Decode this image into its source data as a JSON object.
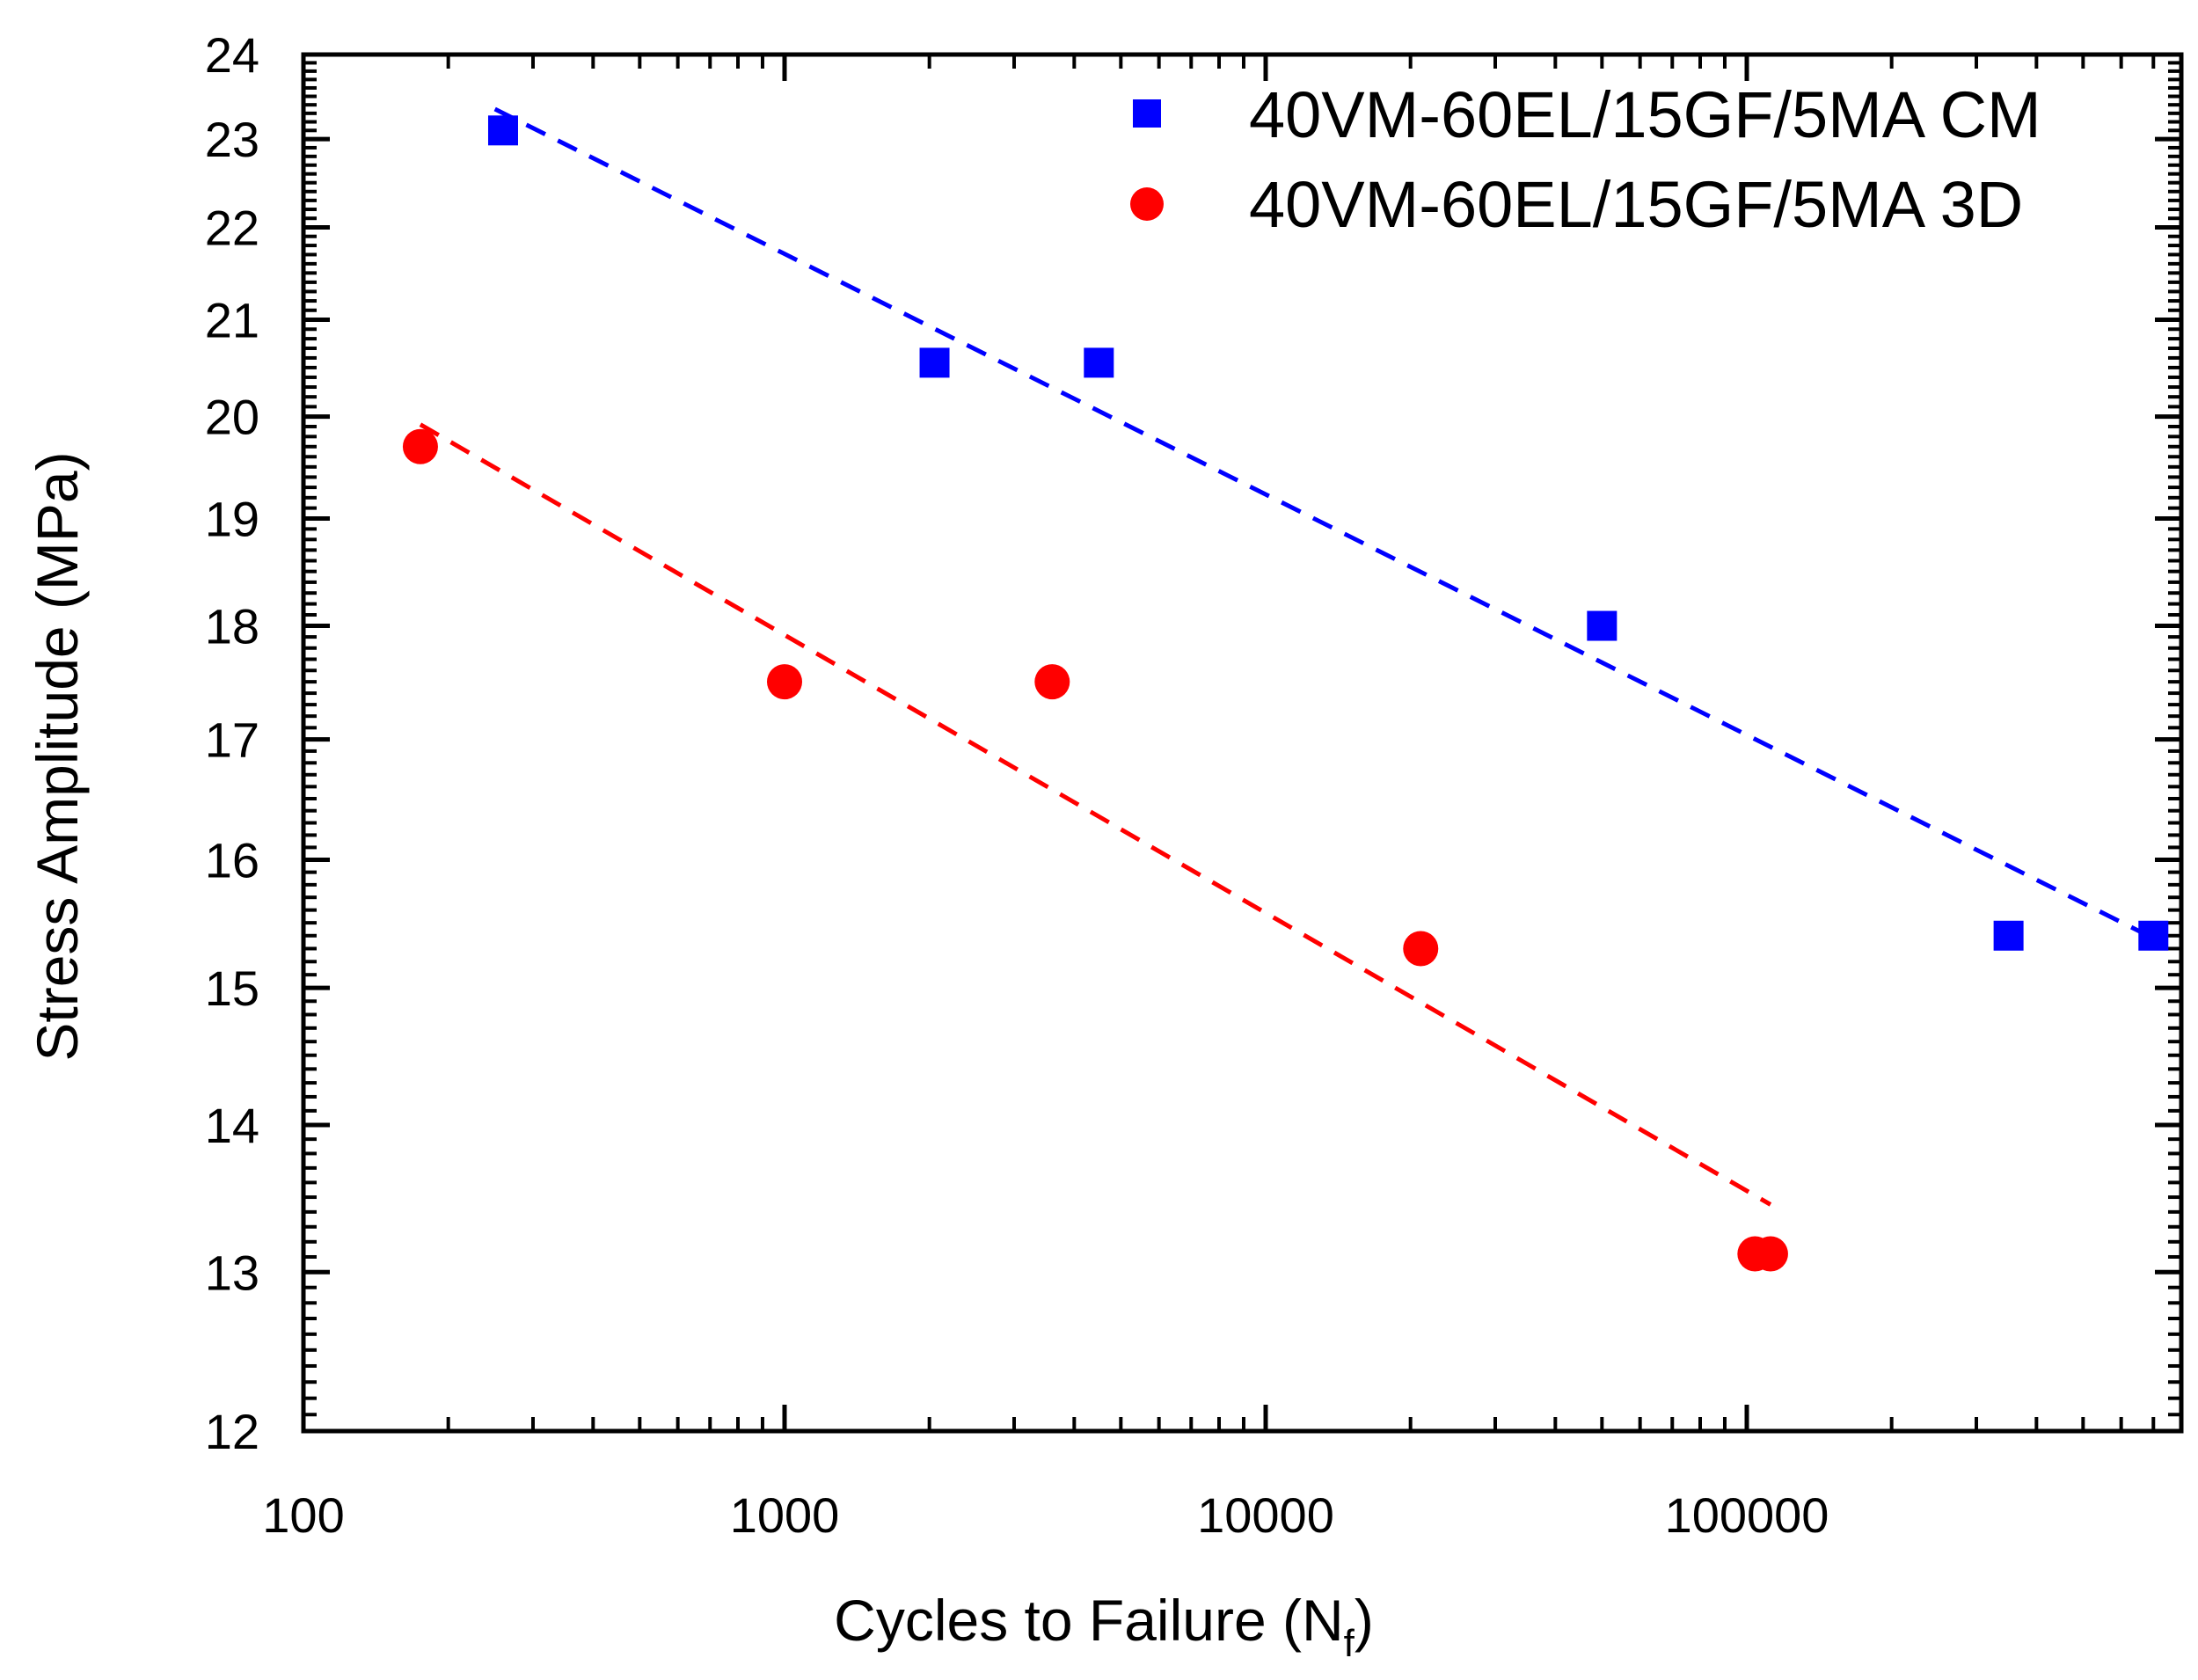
{
  "chart_data": {
    "type": "scatter",
    "title": "",
    "xlabel": "Cycles to Failure (N",
    "xlabel_subscript": "f",
    "xlabel_close": ")",
    "ylabel": "Stress Amplitude (MPa)",
    "xscale": "log",
    "yscale": "log",
    "xlim": [
      100,
      800000
    ],
    "ylim": [
      12,
      24
    ],
    "x_ticks": [
      {
        "value": 100,
        "label": "100"
      },
      {
        "value": 1000,
        "label": "1000"
      },
      {
        "value": 10000,
        "label": "10000"
      },
      {
        "value": 100000,
        "label": "100000"
      }
    ],
    "y_ticks": [
      {
        "value": 12,
        "label": "12"
      },
      {
        "value": 13,
        "label": "13"
      },
      {
        "value": 14,
        "label": "14"
      },
      {
        "value": 15,
        "label": "15"
      },
      {
        "value": 16,
        "label": "16"
      },
      {
        "value": 17,
        "label": "17"
      },
      {
        "value": 18,
        "label": "18"
      },
      {
        "value": 19,
        "label": "19"
      },
      {
        "value": 20,
        "label": "20"
      },
      {
        "value": 21,
        "label": "21"
      },
      {
        "value": 22,
        "label": "22"
      },
      {
        "value": 23,
        "label": "23"
      },
      {
        "value": 24,
        "label": "24"
      }
    ],
    "legend_position": "top-right",
    "series": [
      {
        "name": "40VM-60EL/15GF/5MA CM",
        "marker": "square",
        "color": "#0000ff",
        "points": [
          {
            "x": 260,
            "y": 23.1
          },
          {
            "x": 2050,
            "y": 20.55
          },
          {
            "x": 4500,
            "y": 20.55
          },
          {
            "x": 50000,
            "y": 18.0
          },
          {
            "x": 350000,
            "y": 15.4
          },
          {
            "x": 700000,
            "y": 15.4
          }
        ],
        "fit": [
          {
            "x": 250,
            "y": 23.35
          },
          {
            "x": 700000,
            "y": 15.38
          }
        ]
      },
      {
        "name": "40VM-60EL/15GF/5MA 3D",
        "marker": "circle",
        "color": "#ff0000",
        "points": [
          {
            "x": 175,
            "y": 19.7
          },
          {
            "x": 1000,
            "y": 17.5
          },
          {
            "x": 3600,
            "y": 17.5
          },
          {
            "x": 21000,
            "y": 15.3
          },
          {
            "x": 104000,
            "y": 13.12
          },
          {
            "x": 112000,
            "y": 13.12
          }
        ],
        "fit": [
          {
            "x": 175,
            "y": 19.92
          },
          {
            "x": 112000,
            "y": 13.45
          }
        ]
      }
    ]
  }
}
